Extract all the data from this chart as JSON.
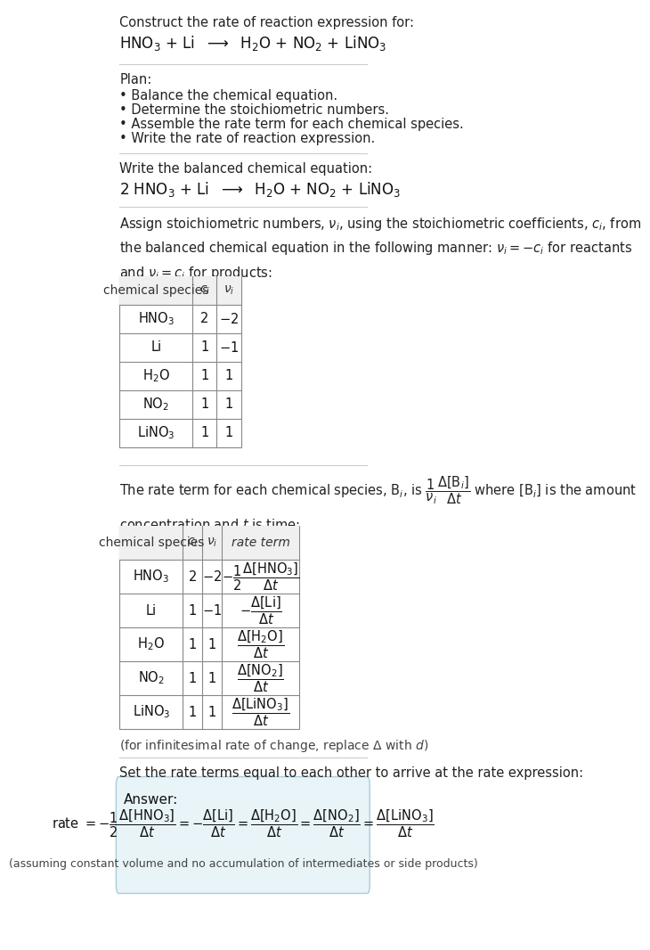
{
  "title_line1": "Construct the rate of reaction expression for:",
  "title_line2": "HNO$_3$ + Li  $\\longrightarrow$  H$_2$O + NO$_2$ + LiNO$_3$",
  "plan_header": "Plan:",
  "plan_items": [
    "Balance the chemical equation.",
    "Determine the stoichiometric numbers.",
    "Assemble the rate term for each chemical species.",
    "Write the rate of reaction expression."
  ],
  "balanced_header": "Write the balanced chemical equation:",
  "balanced_eq": "2 HNO$_3$ + Li  $\\longrightarrow$  H$_2$O + NO$_2$ + LiNO$_3$",
  "stoich_intro": "Assign stoichiometric numbers, $\\nu_i$, using the stoichiometric coefficients, $c_i$, from\nthe balanced chemical equation in the following manner: $\\nu_i = -c_i$ for reactants\nand $\\nu_i = c_i$ for products:",
  "table1_headers": [
    "chemical species",
    "$c_i$",
    "$\\nu_i$"
  ],
  "table1_rows": [
    [
      "HNO$_3$",
      "2",
      "$-2$"
    ],
    [
      "Li",
      "1",
      "$-1$"
    ],
    [
      "H$_2$O",
      "1",
      "1"
    ],
    [
      "NO$_2$",
      "1",
      "1"
    ],
    [
      "LiNO$_3$",
      "1",
      "1"
    ]
  ],
  "rate_intro": "The rate term for each chemical species, B$_i$, is $\\dfrac{1}{\\nu_i}\\dfrac{\\Delta[\\mathrm{B}_i]}{\\Delta t}$ where [B$_i$] is the amount\nconcentration and $t$ is time:",
  "table2_headers": [
    "chemical species",
    "$c_i$",
    "$\\nu_i$",
    "rate term"
  ],
  "table2_rows": [
    [
      "HNO$_3$",
      "2",
      "$-2$",
      "$-\\dfrac{1}{2}\\dfrac{\\Delta[\\mathrm{HNO_3}]}{\\Delta t}$"
    ],
    [
      "Li",
      "1",
      "$-1$",
      "$-\\dfrac{\\Delta[\\mathrm{Li}]}{\\Delta t}$"
    ],
    [
      "H$_2$O",
      "1",
      "1",
      "$\\dfrac{\\Delta[\\mathrm{H_2O}]}{\\Delta t}$"
    ],
    [
      "NO$_2$",
      "1",
      "1",
      "$\\dfrac{\\Delta[\\mathrm{NO_2}]}{\\Delta t}$"
    ],
    [
      "LiNO$_3$",
      "1",
      "1",
      "$\\dfrac{\\Delta[\\mathrm{LiNO_3}]}{\\Delta t}$"
    ]
  ],
  "infinitesimal_note": "(for infinitesimal rate of change, replace $\\Delta$ with $d$)",
  "set_equal_text": "Set the rate terms equal to each other to arrive at the rate expression:",
  "answer_label": "Answer:",
  "answer_eq": "rate $= -\\dfrac{1}{2}\\dfrac{\\Delta[\\mathrm{HNO_3}]}{\\Delta t} = -\\dfrac{\\Delta[\\mathrm{Li}]}{\\Delta t} = \\dfrac{\\Delta[\\mathrm{H_2O}]}{\\Delta t} = \\dfrac{\\Delta[\\mathrm{NO_2}]}{\\Delta t} = \\dfrac{\\Delta[\\mathrm{LiNO_3}]}{\\Delta t}$",
  "answer_note": "(assuming constant volume and no accumulation of intermediates or side products)",
  "bg_color": "#ffffff",
  "box_color": "#e8f4f8",
  "table_bg": "#ffffff",
  "text_color": "#000000",
  "border_color": "#cccccc",
  "answer_box_border": "#aaccdd"
}
